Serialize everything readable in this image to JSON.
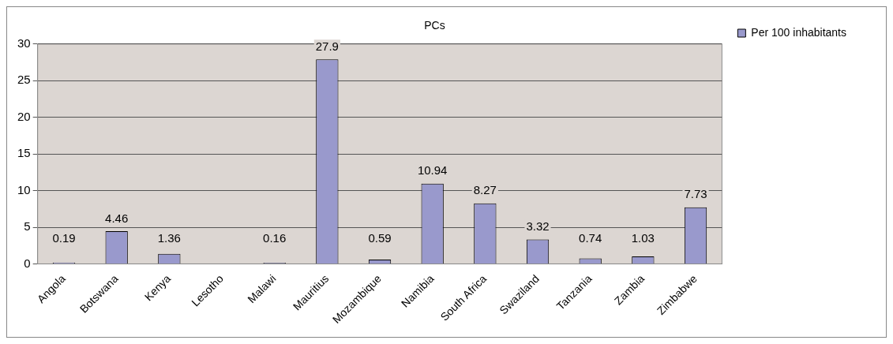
{
  "chart_data": {
    "type": "bar",
    "title": "PCs",
    "categories": [
      "Angola",
      "Botswana",
      "Kenya",
      "Lesotho",
      "Malawi",
      "Mauritius",
      "Mozambique",
      "Namibia",
      "South Africa",
      "Swaziland",
      "Tanzania",
      "Zambia",
      "Zimbabwe"
    ],
    "series": [
      {
        "name": "Per 100 inhabitants",
        "color": "#9999cc",
        "values": [
          0.19,
          4.46,
          1.36,
          null,
          0.16,
          27.9,
          0.59,
          10.94,
          8.27,
          3.32,
          0.74,
          1.03,
          7.73
        ]
      }
    ],
    "ylim": [
      0,
      30
    ],
    "yticks": [
      0,
      5,
      10,
      15,
      20,
      25,
      30
    ],
    "grid": "y",
    "legend": "right",
    "data_labels": true
  }
}
